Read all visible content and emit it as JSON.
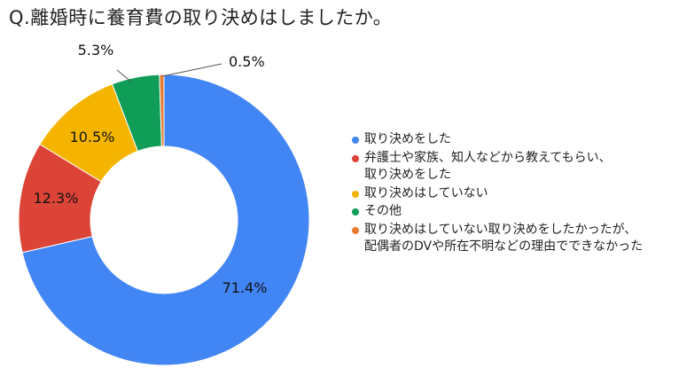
{
  "title": "Q.離婚時に養育費の取り決めはしましたか。",
  "colors": {
    "blue": "#4285F4",
    "red": "#DB4437",
    "yellow": "#F4B400",
    "green": "#0F9D58",
    "orange": "#E67C32"
  },
  "chart_data": {
    "type": "pie",
    "donut": true,
    "legend_position": "right",
    "slices": [
      {
        "label": "取り決めをした",
        "label_lines": [
          "取り決めをした"
        ],
        "value": 71.4,
        "display": "71.4%",
        "color": "#4285F4"
      },
      {
        "label": "弁護士や家族、知人などから教えてもらい、取り決めをした",
        "label_lines": [
          "弁護士や家族、知人などから教えてもらい、",
          "取り決めをした"
        ],
        "value": 12.3,
        "display": "12.3%",
        "color": "#DB4437"
      },
      {
        "label": "取り決めはしていない",
        "label_lines": [
          "取り決めはしていない"
        ],
        "value": 10.5,
        "display": "10.5%",
        "color": "#F4B400"
      },
      {
        "label": "その他",
        "label_lines": [
          "その他"
        ],
        "value": 5.3,
        "display": "5.3%",
        "color": "#0F9D58"
      },
      {
        "label": "取り決めはしていない取り決めをしたかったが、配偶者のDVや所在不明などの理由でできなかった",
        "label_lines": [
          "取り決めはしていない取り決めをしたかったが、",
          "配偶者のDVや所在不明などの理由でできなかった"
        ],
        "value": 0.5,
        "display": "0.5%",
        "color": "#E67C32"
      }
    ]
  }
}
